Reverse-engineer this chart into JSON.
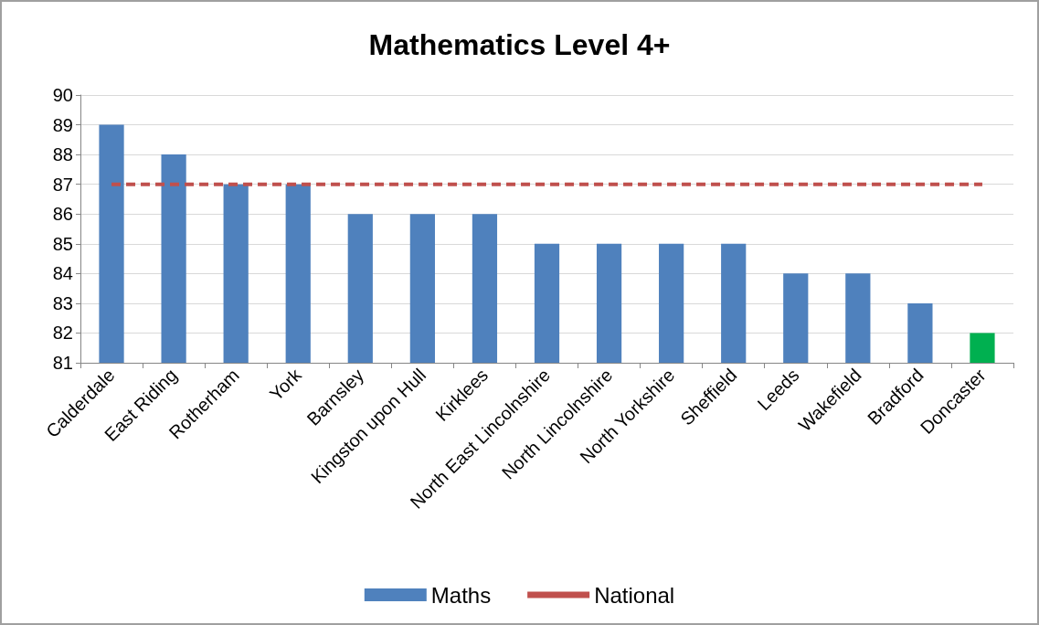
{
  "chart_data": {
    "type": "bar",
    "title": "Mathematics Level 4+",
    "categories": [
      "Calderdale",
      "East Riding",
      "Rotherham",
      "York",
      "Barnsley",
      "Kingston upon Hull",
      "Kirklees",
      "North East Lincolnshire",
      "North Lincolnshire",
      "North Yorkshire",
      "Sheffield",
      "Leeds",
      "Wakefield",
      "Bradford",
      "Doncaster"
    ],
    "series": [
      {
        "name": "Maths",
        "color": "#4f81bd",
        "colors": [
          "#4f81bd",
          "#4f81bd",
          "#4f81bd",
          "#4f81bd",
          "#4f81bd",
          "#4f81bd",
          "#4f81bd",
          "#4f81bd",
          "#4f81bd",
          "#4f81bd",
          "#4f81bd",
          "#4f81bd",
          "#4f81bd",
          "#4f81bd",
          "#00b050"
        ],
        "values": [
          89,
          88,
          87,
          87,
          86,
          86,
          86,
          85,
          85,
          85,
          85,
          84,
          84,
          83,
          82
        ]
      },
      {
        "name": "National",
        "type": "line",
        "color": "#c0504d",
        "line_style": "dashed",
        "marker": "none",
        "values": [
          87,
          87,
          87,
          87,
          87,
          87,
          87,
          87,
          87,
          87,
          87,
          87,
          87,
          87,
          87
        ]
      }
    ],
    "ylim": [
      81,
      90
    ],
    "yticks": [
      81,
      82,
      83,
      84,
      85,
      86,
      87,
      88,
      89,
      90
    ],
    "grid": "y",
    "legend": "bottom"
  }
}
